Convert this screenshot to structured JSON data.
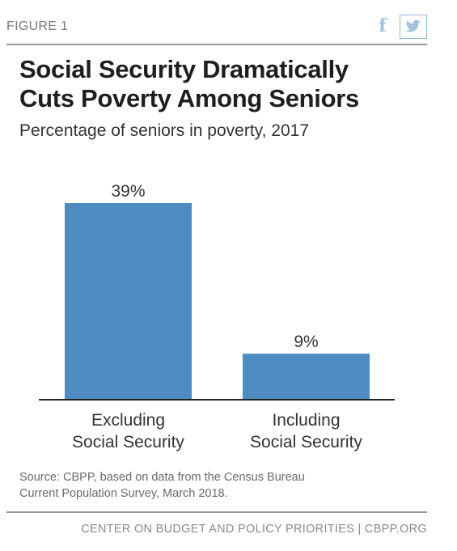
{
  "header": {
    "figure_label": "FIGURE 1",
    "share_icons": [
      "facebook-icon",
      "twitter-icon"
    ]
  },
  "chart_data": {
    "type": "bar",
    "title": "Social Security Dramatically Cuts Poverty Among Seniors",
    "title_lines": [
      "Social Security Dramatically",
      "Cuts Poverty Among Seniors"
    ],
    "subtitle": "Percentage of seniors in poverty, 2017",
    "categories": [
      "Excluding Social Security",
      "Including Social Security"
    ],
    "category_lines": [
      [
        "Excluding",
        "Social Security"
      ],
      [
        "Including",
        "Social Security"
      ]
    ],
    "values": [
      39,
      9
    ],
    "value_labels": [
      "39%",
      "9%"
    ],
    "unit": "%",
    "ylim": [
      0,
      39
    ],
    "grid": false,
    "bar_color": "#4d8cc0"
  },
  "source": {
    "lines": [
      "Source: CBPP, based on data from the Census Bureau",
      "Current Population Survey, March 2018."
    ]
  },
  "footer": {
    "text": "CENTER ON BUDGET AND POLICY PRIORITIES | CBPP.ORG"
  },
  "colors": {
    "bar": "#4d8cc0",
    "rule": "#9a9a9a",
    "icon": "#9fc2dd"
  }
}
